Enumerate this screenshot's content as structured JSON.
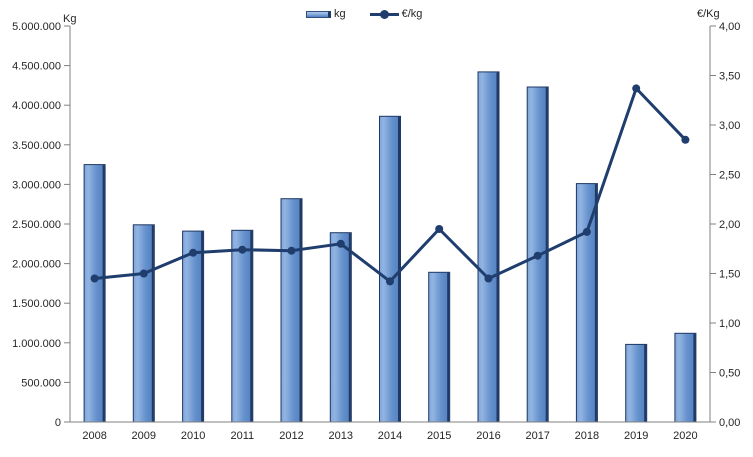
{
  "chart_data": {
    "type": "bar",
    "subtype": "combo-bar-line-dual-axis",
    "title": "",
    "categories": [
      "2008",
      "2009",
      "2010",
      "2011",
      "2012",
      "2013",
      "2014",
      "2015",
      "2016",
      "2017",
      "2018",
      "2019",
      "2020"
    ],
    "series": [
      {
        "name": "kg",
        "type": "bar",
        "axis": "left",
        "values": [
          3250000,
          2490000,
          2410000,
          2420000,
          2820000,
          2390000,
          3860000,
          1890000,
          4420000,
          4230000,
          3010000,
          980000,
          1120000
        ]
      },
      {
        "name": "€/kg",
        "type": "line",
        "axis": "right",
        "values": [
          1.45,
          1.5,
          1.71,
          1.74,
          1.73,
          1.8,
          1.42,
          1.95,
          1.45,
          1.68,
          1.92,
          3.37,
          2.85
        ]
      }
    ],
    "left_axis": {
      "title": "Kg",
      "min": 0,
      "max": 5000000,
      "tick_step": 500000,
      "tick_labels": [
        "5.000.000",
        "4.500.000",
        "4.000.000",
        "3.500.000",
        "3.000.000",
        "2.500.000",
        "2.000.000",
        "1.500.000",
        "1.000.000",
        "500.000",
        "0"
      ]
    },
    "right_axis": {
      "title": "€/Kg",
      "min": 0,
      "max": 4,
      "tick_step": 0.5,
      "tick_labels": [
        "4,00",
        "3,50",
        "3,00",
        "2,50",
        "2,00",
        "1,50",
        "1,00",
        "0,50",
        "0,00"
      ]
    },
    "legend": {
      "position": "top",
      "bar_label": "kg",
      "line_label": "€/kg"
    },
    "grid": "off",
    "colors": {
      "bar_fill_light": "#92B4E2",
      "bar_fill": "#6490CC",
      "bar_fill_dark": "#527FBE",
      "bar_border": "#1F3864",
      "line": "#1F3D6D",
      "axis_line": "#808080",
      "text": "#262626",
      "background": "#FFFFFF"
    }
  }
}
